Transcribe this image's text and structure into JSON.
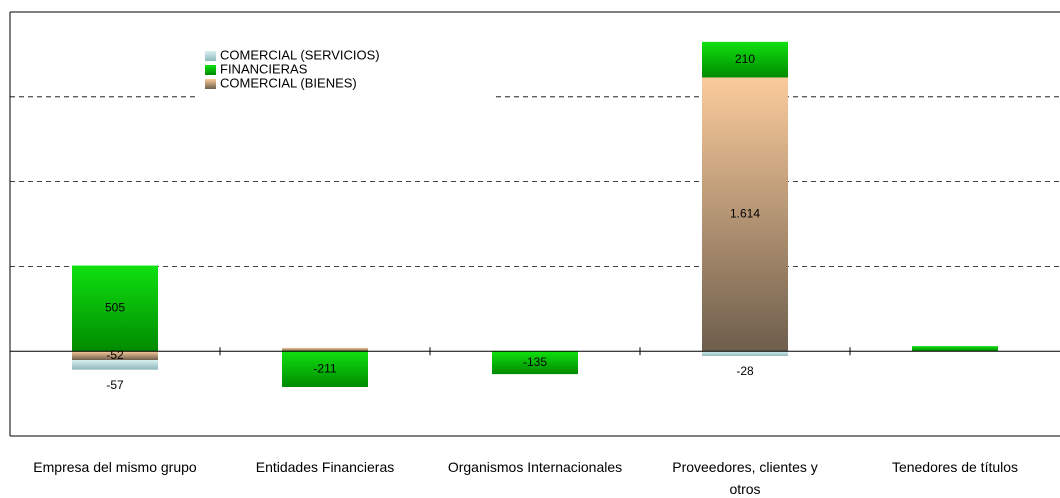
{
  "chart_data": {
    "type": "bar",
    "stacked": true,
    "categories": [
      "Empresa del mismo grupo",
      "Entidades Financieras",
      "Organismos Internacionales",
      "Proveedores, clientes y otros",
      "Tenedores de títulos"
    ],
    "series": [
      {
        "name": "COMERCIAL (SERVICIOS)",
        "color": "#9fd3d6",
        "values": [
          -57,
          null,
          null,
          -28,
          null
        ],
        "value_labels": [
          "-57",
          null,
          null,
          "-28",
          null
        ]
      },
      {
        "name": "FINANCIERAS",
        "color": "#00c800",
        "values": [
          505,
          -211,
          -135,
          210,
          30
        ],
        "value_labels": [
          "505",
          "-211",
          "-135",
          "210",
          null
        ]
      },
      {
        "name": "COMERCIAL (BIENES)",
        "color": "#c9a27e",
        "values": [
          -52,
          20,
          null,
          1614,
          null
        ],
        "value_labels": [
          "-52",
          null,
          null,
          "1.614",
          null
        ]
      }
    ],
    "ylim": [
      -500,
      2000
    ],
    "yticks": [
      500,
      1000,
      1500
    ],
    "grid": true
  }
}
